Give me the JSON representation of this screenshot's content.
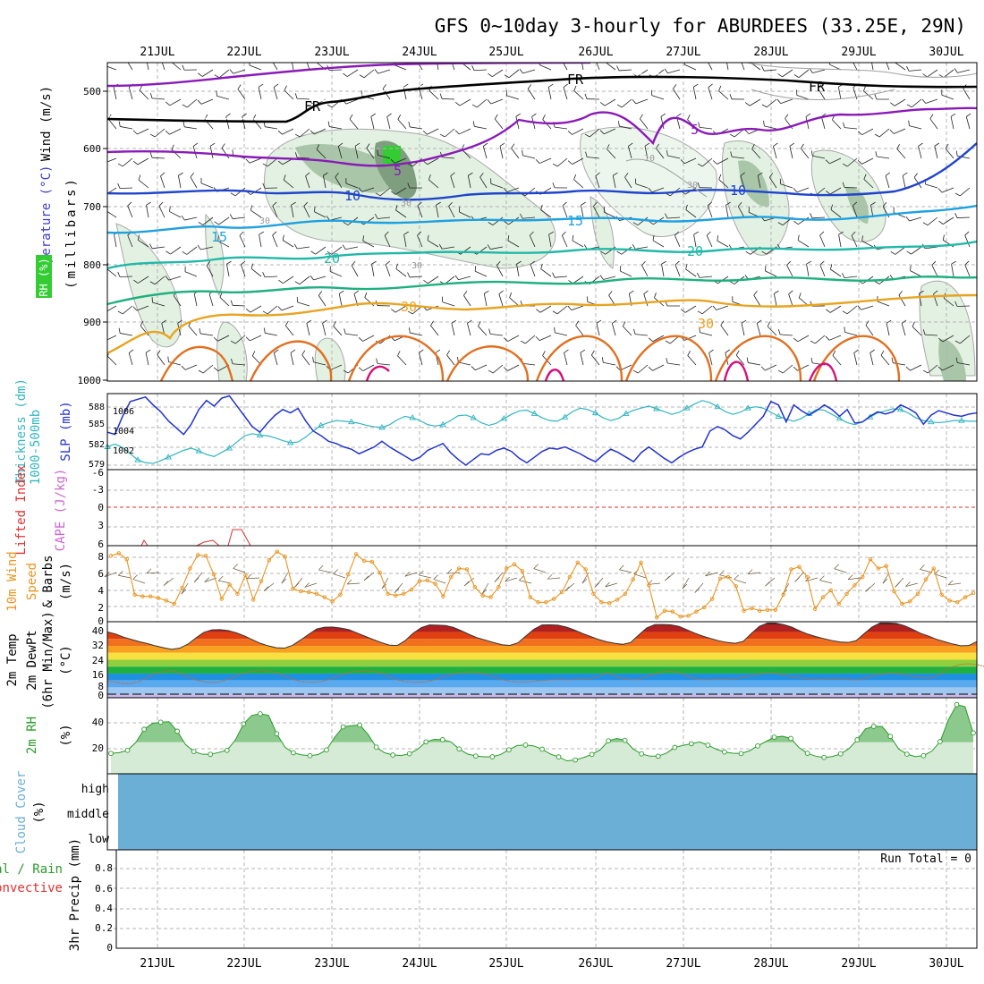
{
  "title": "GFS 0~10day 3-hourly for ABURDEES (33.25E, 29N)",
  "dates": [
    "21JUL",
    "22JUL",
    "23JUL",
    "24JUL",
    "25JUL",
    "26JUL",
    "27JUL",
    "28JUL",
    "29JUL",
    "30JUL"
  ],
  "colors": {
    "grid": "#b4b4b4",
    "axis": "#000000",
    "slp": "#2233cc",
    "thickness": "#33b5c0",
    "lifted": "#e03030",
    "wind_speed": "#e89522",
    "rh2m_fill": "#8cc98c",
    "rh2m_line": "#2a9a2a",
    "cloud": "#6baed6",
    "dewpt": "#c06a3a"
  },
  "panels": [
    {
      "id": "upper",
      "ylabel": [
        "Wind (m/s)",
        "Temperature (°C)",
        "RH (%)",
        "(millibars)"
      ],
      "ticks": [
        "500",
        "600",
        "700",
        "800",
        "900",
        "1000"
      ]
    },
    {
      "id": "slp",
      "ylabel": [
        "Thickness (dm)",
        "1000-500mb",
        "SLP (mb)"
      ],
      "ticks_left": [
        "588",
        "585",
        "582",
        "579"
      ],
      "ticks_right": [
        "1006",
        "1004",
        "1002"
      ]
    },
    {
      "id": "lifted",
      "ylabel": [
        "Lifted Index",
        "CAPE (J/kg)"
      ],
      "ticks": [
        "-6",
        "-3",
        "0",
        "3",
        "6"
      ]
    },
    {
      "id": "wind10",
      "ylabel": [
        "10m Wind",
        "Speed",
        "& Barbs",
        "(m/s)"
      ],
      "ticks": [
        "8",
        "6",
        "4",
        "2",
        "0"
      ]
    },
    {
      "id": "temp2m",
      "ylabel": [
        "2m Temp",
        "2m DewPt",
        "(6hr Min/Max)",
        "(°C)"
      ],
      "ticks": [
        "40",
        "32",
        "24",
        "16",
        "8",
        "0"
      ]
    },
    {
      "id": "rh2m",
      "ylabel": [
        "2m RH",
        "(%)"
      ],
      "ticks": [
        "40",
        "20"
      ]
    },
    {
      "id": "cloud",
      "ylabel": [
        "Cloud Cover",
        "(%)"
      ],
      "ticks": [
        "high",
        "middle",
        "low"
      ]
    },
    {
      "id": "precip",
      "ylabel": [
        "3hr Precip (mm)",
        "Total / Rain",
        "Convective"
      ],
      "ticks": [
        "0.8",
        "0.6",
        "0.4",
        "0.2",
        "0"
      ]
    }
  ],
  "contour_labels": [
    "FR",
    "FR",
    "FR",
    "5",
    "5",
    "10",
    "10",
    "15",
    "15",
    "20",
    "20",
    "30",
    "30",
    "10",
    "30",
    "30",
    "30",
    "30"
  ],
  "run_total": "Run Total = 0",
  "chart_data": [
    {
      "type": "line",
      "title": "SLP and 1000-500mb Thickness",
      "x_unit": "3-hour steps from 20JUL 12Z",
      "series": [
        {
          "name": "SLP (mb)",
          "axis": "right",
          "ylim": [
            1000.5,
            1007.2
          ],
          "values": [
            1003.8,
            1003.6,
            1005.2,
            1006.5,
            1006.7,
            1006.9,
            1006.2,
            1005.6,
            1004.8,
            1004.2,
            1003.6,
            1004.5,
            1005.8,
            1006.6,
            1006.1,
            1006.8,
            1007.0,
            1006.1,
            1005.2,
            1004.3,
            1003.8,
            1004.6,
            1005.3,
            1005.8,
            1005.5,
            1005.9,
            1004.8,
            1003.9,
            1003.5,
            1003.0,
            1002.8,
            1002.5,
            1002.3,
            1001.9,
            1002.2,
            1002.5,
            1003.0,
            1002.5,
            1002.1,
            1001.7,
            1001.3,
            1001.6,
            1002.2,
            1002.5,
            1002.8,
            1002.0,
            1001.4,
            1000.9,
            1001.4,
            1001.9,
            1001.8,
            1002.2,
            1002.4,
            1002.1,
            1001.5,
            1001.1,
            1001.6,
            1002.1,
            1002.4,
            1002.3,
            1002.5,
            1002.2,
            1001.9,
            1001.5,
            1001.2,
            1001.8,
            1002.3,
            1002.0,
            1001.6,
            1001.2,
            1002.0,
            1002.5,
            1002.0,
            1001.5,
            1001.1,
            1001.6,
            1002.0,
            1002.3,
            1002.5,
            1003.9,
            1004.3,
            1004.0,
            1003.5,
            1003.2,
            1003.8,
            1004.5,
            1005.2,
            1006.5,
            1006.2,
            1004.7,
            1006.2,
            1005.7,
            1005.3,
            1005.7,
            1006.2,
            1005.8,
            1005.2,
            1005.8,
            1004.6,
            1004.7,
            1005.2,
            1005.6,
            1005.4,
            1005.6,
            1006.2,
            1005.9,
            1005.5,
            1004.5,
            1005.3,
            1005.7,
            1005.5,
            1005.3,
            1005.2,
            1005.4,
            1005.5
          ]
        },
        {
          "name": "1000-500mb Thickness (dm)",
          "axis": "left",
          "ylim": [
            578.5,
            589.5
          ],
          "values": [
            581.8,
            582.2,
            581.7,
            580.8,
            579.9,
            579.5,
            579.4,
            579.8,
            580.3,
            580.8,
            581.3,
            581.6,
            581.2,
            580.7,
            580.4,
            581.0,
            581.6,
            582.5,
            583.4,
            583.7,
            583.5,
            583.4,
            583.1,
            582.7,
            582.4,
            582.5,
            583.2,
            584.1,
            584.9,
            585.3,
            585.6,
            585.5,
            585.4,
            585.2,
            584.9,
            584.7,
            584.6,
            585.0,
            585.7,
            586.2,
            586.0,
            585.6,
            585.0,
            584.8,
            585.0,
            585.6,
            586.3,
            586.4,
            586.0,
            585.3,
            584.9,
            585.2,
            585.9,
            586.5,
            587.0,
            587.1,
            586.6,
            586.0,
            585.6,
            585.5,
            586.1,
            586.9,
            587.4,
            587.2,
            586.7,
            586.0,
            585.6,
            585.9,
            586.6,
            587.1,
            587.4,
            587.7,
            587.3,
            586.9,
            586.5,
            586.8,
            587.4,
            588.0,
            588.5,
            588.2,
            587.6,
            586.9,
            586.5,
            586.8,
            587.4,
            587.6,
            587.4,
            586.8,
            586.2,
            585.8,
            585.5,
            585.9,
            586.6,
            587.2,
            587.1,
            586.5,
            585.9,
            585.3,
            585.0,
            585.4,
            586.1,
            586.7,
            587.0,
            587.3,
            587.2,
            586.7,
            586.0,
            585.6,
            585.4,
            585.3,
            585.4,
            585.6,
            585.6,
            585.5,
            585.5
          ]
        }
      ]
    },
    {
      "type": "line",
      "title": "10m Wind Speed (m/s)",
      "ylim": [
        0,
        9
      ],
      "values": [
        7.8,
        8.1,
        7.4,
        3.2,
        3.0,
        3.0,
        2.8,
        2.5,
        2.1,
        4.0,
        6.3,
        7.9,
        7.8,
        5.6,
        2.7,
        4.4,
        3.3,
        5.5,
        2.6,
        4.8,
        7.3,
        8.3,
        7.7,
        3.9,
        3.6,
        3.5,
        3.3,
        2.9,
        2.4,
        3.2,
        5.6,
        8.0,
        7.2,
        7.1,
        5.8,
        3.3,
        3.1,
        3.3,
        3.8,
        4.8,
        4.9,
        4.5,
        3.0,
        5.3,
        6.3,
        6.2,
        4.1,
        3.1,
        2.9,
        4.1,
        6.3,
        6.8,
        6.0,
        2.9,
        2.3,
        2.3,
        2.7,
        3.5,
        5.3,
        7.0,
        6.2,
        3.3,
        2.3,
        2.2,
        2.6,
        3.3,
        5.0,
        7.0,
        4.3,
        0.5,
        1.3,
        1.2,
        0.6,
        0.7,
        1.2,
        1.7,
        2.7,
        5.1,
        5.3,
        4.2,
        1.3,
        1.6,
        1.3,
        1.4,
        1.4,
        3.2,
        6.2,
        6.5,
        5.3,
        1.5,
        2.9,
        3.7,
        2.1,
        3.3,
        4.3,
        5.3,
        7.4,
        6.3,
        6.6,
        3.6,
        2.1,
        2.4,
        3.3,
        5.0,
        6.3,
        3.2,
        2.5,
        2.3,
        2.9,
        3.4
      ]
    },
    {
      "type": "area",
      "title": "2m Temp / 2m DewPt (°C)",
      "ylim": [
        -2,
        42
      ],
      "series": [
        {
          "name": "2m Temp",
          "values": [
            36.1,
            34.9,
            33.1,
            31.7,
            30.4,
            29.3,
            28.0,
            26.9,
            26.0,
            26.7,
            29.0,
            32.6,
            35.9,
            37.3,
            37.4,
            36.9,
            35.6,
            33.8,
            31.6,
            29.5,
            28.0,
            26.9,
            26.7,
            28.3,
            31.4,
            34.7,
            37.8,
            38.8,
            38.9,
            38.3,
            37.4,
            35.5,
            33.6,
            31.7,
            30.0,
            28.5,
            28.2,
            31.1,
            35.4,
            38.6,
            40.1,
            40.0,
            39.8,
            38.7,
            36.7,
            34.5,
            32.6,
            31.3,
            29.9,
            28.7,
            28.3,
            29.8,
            33.8,
            37.7,
            40.1,
            40.2,
            40.0,
            38.9,
            37.2,
            35.2,
            33.5,
            31.7,
            30.4,
            29.5,
            28.9,
            30.0,
            34.3,
            38.4,
            40.3,
            40.4,
            40.2,
            39.3,
            37.3,
            35.3,
            33.6,
            32.2,
            30.9,
            30.0,
            29.5,
            30.7,
            35.2,
            39.4,
            41.2,
            41.2,
            40.3,
            38.9,
            36.7,
            34.8,
            33.4,
            32.2,
            31.1,
            30.3,
            30.0,
            31.0,
            35.1,
            39.0,
            41.3,
            41.3,
            41.0,
            39.7,
            37.6,
            35.3,
            33.7,
            31.8,
            30.4,
            29.1,
            28.1,
            28.2,
            30.5
          ]
        },
        {
          "name": "2m DewPt",
          "values": [
            7.5,
            7.0,
            6.3,
            6.4,
            7.5,
            9.9,
            12.3,
            13.2,
            13.8,
            12.5,
            10.2,
            8.2,
            7.3,
            6.8,
            7.3,
            8.6,
            10.6,
            12.5,
            13.5,
            14.0,
            13.4,
            12.5,
            10.5,
            8.7,
            7.4,
            7.0,
            7.1,
            7.8,
            9.3,
            11.1,
            12.6,
            13.6,
            13.8,
            13.4,
            12.3,
            10.1,
            8.3,
            7.4,
            7.0,
            7.1,
            7.6,
            8.7,
            10.3,
            11.7,
            12.6,
            13.0,
            12.6,
            11.7,
            10.0,
            8.5,
            7.5,
            7.1,
            7.2,
            7.6,
            8.0,
            8.3,
            8.5,
            8.3,
            8.5,
            8.8,
            9.1,
            10.2,
            12.6,
            10.5,
            9.0,
            8.5,
            8.5,
            10.4,
            11.6,
            13.1,
            13.5,
            12.7,
            10.6,
            8.9,
            8.4,
            8.5,
            8.7,
            8.6,
            9.0,
            10.0,
            10.6,
            11.8,
            12.5,
            12.3,
            11.2,
            10.1,
            9.7,
            9.0,
            8.6,
            8.7,
            8.8,
            8.9,
            8.6,
            8.2,
            9.2,
            10.5,
            11.7,
            12.3,
            12.1,
            11.4,
            10.4,
            9.7,
            9.3,
            10.5,
            13.6,
            16.0,
            17.3,
            17.7,
            17.1,
            16.1,
            14.5
          ]
        }
      ]
    },
    {
      "type": "area",
      "title": "2m RH (%)",
      "ylim": [
        0,
        60
      ],
      "values": [
        16.1,
        16.7,
        18.5,
        24.7,
        35.1,
        39.7,
        40.7,
        41.1,
        33.6,
        23.0,
        17.6,
        15.4,
        15.4,
        16.8,
        18.5,
        26.6,
        39.4,
        46.1,
        47.3,
        46.2,
        31.6,
        20.9,
        16.6,
        14.9,
        14.3,
        15.2,
        18.8,
        28.9,
        37.1,
        37.9,
        38.5,
        31.2,
        21.0,
        16.6,
        14.8,
        14.4,
        15.8,
        19.4,
        25.2,
        27.2,
        26.9,
        25.2,
        19.6,
        15.6,
        14.0,
        13.4,
        13.4,
        15.2,
        18.9,
        22.3,
        22.7,
        22.0,
        19.4,
        15.6,
        13.3,
        10.2,
        10.9,
        12.8,
        15.3,
        18.8,
        26.0,
        27.9,
        26.4,
        19.4,
        15.7,
        13.9,
        13.9,
        16.3,
        20.8,
        22.4,
        23.7,
        25.1,
        22.6,
        19.4,
        17.2,
        16.2,
        16.0,
        18.1,
        22.0,
        25.5,
        28.9,
        29.6,
        27.9,
        20.6,
        16.2,
        13.9,
        12.9,
        13.6,
        15.7,
        19.8,
        26.8,
        35.4,
        37.4,
        37.3,
        29.5,
        19.6,
        15.5,
        13.6,
        14.3,
        17.9,
        25.4,
        42.6,
        54.6,
        53.0,
        32.2
      ]
    },
    {
      "type": "line",
      "title": "3hr Precip (mm)",
      "ylim": [
        0,
        1
      ],
      "values": [
        0,
        0,
        0,
        0,
        0,
        0,
        0,
        0,
        0,
        0,
        0,
        0,
        0,
        0,
        0,
        0,
        0,
        0,
        0,
        0,
        0,
        0,
        0,
        0,
        0,
        0,
        0,
        0,
        0,
        0,
        0,
        0,
        0,
        0,
        0,
        0,
        0,
        0,
        0,
        0,
        0,
        0,
        0,
        0,
        0,
        0,
        0,
        0,
        0,
        0,
        0,
        0,
        0,
        0,
        0,
        0,
        0,
        0,
        0,
        0,
        0,
        0,
        0,
        0,
        0,
        0,
        0,
        0,
        0,
        0,
        0,
        0,
        0,
        0,
        0,
        0,
        0,
        0,
        0,
        0,
        0,
        0,
        0,
        0,
        0,
        0,
        0,
        0,
        0,
        0,
        0,
        0,
        0,
        0,
        0,
        0,
        0,
        0,
        0,
        0,
        0,
        0,
        0,
        0,
        0,
        0,
        0,
        0
      ]
    }
  ]
}
